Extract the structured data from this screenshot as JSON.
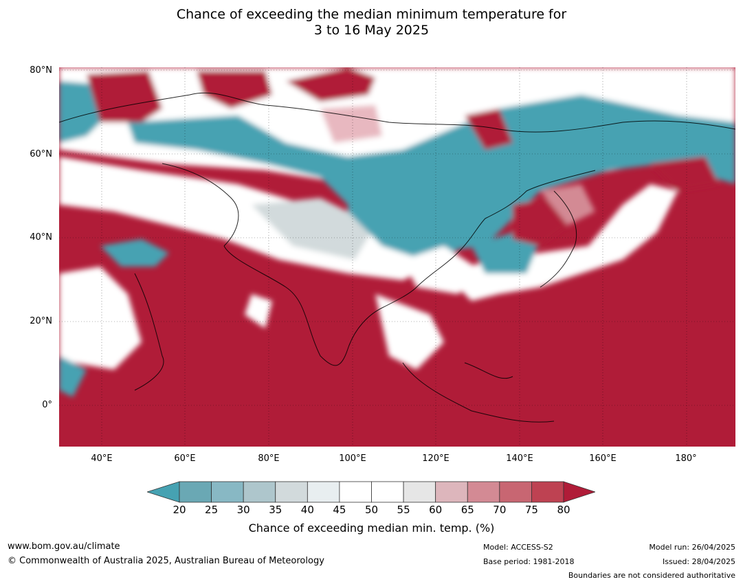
{
  "title": {
    "line1": "Chance of exceeding the median minimum temperature for",
    "line2": "3 to 16 May 2025"
  },
  "map": {
    "lat_labels": [
      "80°N",
      "60°N",
      "40°N",
      "20°N",
      "0°"
    ],
    "lon_labels": [
      "40°E",
      "60°E",
      "80°E",
      "100°E",
      "120°E",
      "140°E",
      "160°E",
      "180°"
    ],
    "colors": {
      "ocean_warm": "#b01c38",
      "cool": "#46a2b2",
      "neutral": "#ffffff"
    }
  },
  "colorbar": {
    "ticks": [
      "20",
      "25",
      "30",
      "35",
      "40",
      "45",
      "50",
      "55",
      "60",
      "65",
      "70",
      "75",
      "80"
    ],
    "colors": [
      "#46a2b2",
      "#6aa8b4",
      "#88b8c4",
      "#aec6cc",
      "#d2dadc",
      "#e8eef0",
      "#ffffff",
      "#ffffff",
      "#e6e6e6",
      "#ddb6bc",
      "#d38a94",
      "#c86672",
      "#be4252",
      "#b01c38"
    ],
    "label": "Chance of exceeding median min. temp. (%)"
  },
  "footer": {
    "website": "www.bom.gov.au/climate",
    "copyright": "© Commonwealth of Australia 2025, Australian Bureau of Meteorology",
    "model": "Model: ACCESS-S2",
    "base_period": "Base period: 1981-2018",
    "model_run": "Model run: 26/04/2025",
    "issued": "Issued: 28/04/2025",
    "disclaimer": "Boundaries are not considered authoritative"
  }
}
